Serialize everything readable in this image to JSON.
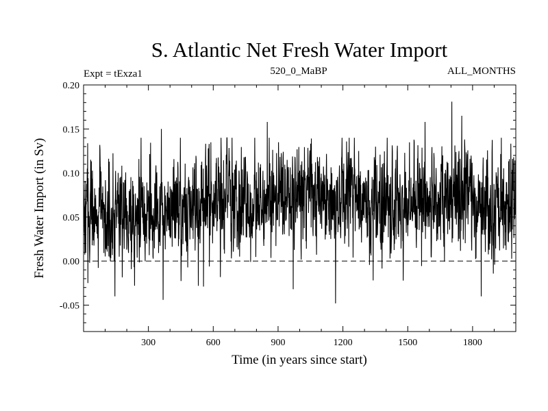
{
  "chart_data": {
    "type": "line",
    "title": "S. Atlantic Net Fresh Water Import",
    "subtitle_left": "Expt = tExza1",
    "subtitle_center": "520_0_MaBP",
    "subtitle_right": "ALL_MONTHS",
    "xlabel": "Time (in years since start)",
    "ylabel": "Fresh Water Import (in Sv)",
    "xlim": [
      0,
      2000
    ],
    "ylim": [
      -0.08,
      0.2
    ],
    "xticks": [
      300,
      600,
      900,
      1200,
      1500,
      1800
    ],
    "xtick_labels": [
      "300",
      "600",
      "900",
      "1200",
      "1500",
      "1800"
    ],
    "yticks": [
      -0.05,
      0.0,
      0.05,
      0.1,
      0.15,
      0.2
    ],
    "ytick_labels": [
      "-0.05",
      "0.00",
      "0.05",
      "0.10",
      "0.15",
      "0.20"
    ],
    "zero_line": 0.0,
    "series": [
      {
        "name": "Net fresh water import",
        "color": "#000000",
        "n_points": 2000,
        "segment_means": [
          {
            "x": [
              0,
              300
            ],
            "mean": 0.055
          },
          {
            "x": [
              300,
              600
            ],
            "mean": 0.062
          },
          {
            "x": [
              600,
              900
            ],
            "mean": 0.068
          },
          {
            "x": [
              900,
              1200
            ],
            "mean": 0.075
          },
          {
            "x": [
              1200,
              1500
            ],
            "mean": 0.065
          },
          {
            "x": [
              1500,
              1800
            ],
            "mean": 0.074
          },
          {
            "x": [
              1800,
              2000
            ],
            "mean": 0.062
          }
        ],
        "std": 0.028,
        "extremes": [
          {
            "x": 1704,
            "y": 0.181
          },
          {
            "x": 1166,
            "y": 0.162
          },
          {
            "x": 850,
            "y": 0.158
          },
          {
            "x": 1580,
            "y": 0.158
          },
          {
            "x": 1750,
            "y": 0.165
          },
          {
            "x": 360,
            "y": 0.15
          },
          {
            "x": 1166,
            "y": -0.048
          },
          {
            "x": 368,
            "y": -0.044
          },
          {
            "x": 145,
            "y": -0.04
          },
          {
            "x": 1840,
            "y": -0.04
          },
          {
            "x": 970,
            "y": -0.032
          },
          {
            "x": 555,
            "y": -0.029
          },
          {
            "x": 20,
            "y": -0.025
          },
          {
            "x": 1340,
            "y": -0.022
          }
        ]
      }
    ]
  }
}
